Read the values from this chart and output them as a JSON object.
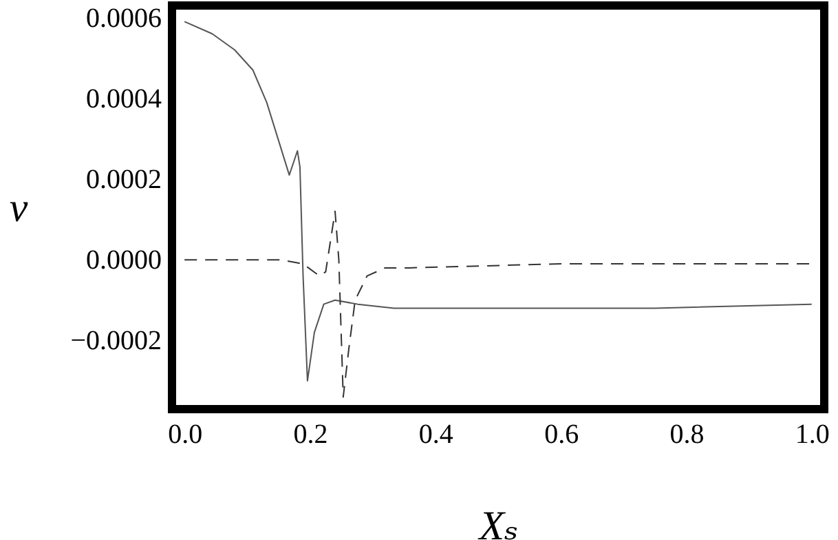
{
  "chart_data": {
    "type": "line",
    "xlabel": "Xₛ",
    "ylabel": "v",
    "xlim": [
      -0.02,
      1.02
    ],
    "ylim": [
      -0.00037,
      0.00063
    ],
    "xticks": [
      {
        "value": 0,
        "label": "0.0"
      },
      {
        "value": 0.2,
        "label": "0.2"
      },
      {
        "value": 0.4,
        "label": "0.4"
      },
      {
        "value": 0.6,
        "label": "0.6"
      },
      {
        "value": 0.8,
        "label": "0.8"
      },
      {
        "value": 1,
        "label": "1.0"
      }
    ],
    "yticks": [
      {
        "value": -0.0002,
        "label": "−0.0002"
      },
      {
        "value": 0,
        "label": "0.0000"
      },
      {
        "value": 0.0002,
        "label": "0.0002"
      },
      {
        "value": 0.0004,
        "label": "0.0004"
      },
      {
        "value": 0.0006,
        "label": "0.0006"
      }
    ],
    "grid": false,
    "series": [
      {
        "color": "#555555",
        "line_style": "solid",
        "x": [
          0,
          0.044,
          0.08,
          0.109,
          0.131,
          0.149,
          0.167,
          0.18,
          0.184,
          0.189,
          0.196,
          0.207,
          0.222,
          0.24,
          0.276,
          0.334,
          0.5,
          0.75,
          1
        ],
        "values": [
          0.00059,
          0.00056,
          0.00052,
          0.00047,
          0.00039,
          0.0003,
          0.00021,
          0.00027,
          0.00023,
          -4e-05,
          -0.0003,
          -0.00018,
          -0.00011,
          -0.0001,
          -0.00011,
          -0.00012,
          -0.00012,
          -0.00012,
          -0.00011
        ]
      },
      {
        "color": "#333333",
        "line_style": "dashed",
        "x": [
          0,
          0.153,
          0.189,
          0.215,
          0.225,
          0.234,
          0.24,
          0.246,
          0.253,
          0.262,
          0.272,
          0.291,
          0.32,
          0.358,
          0.6,
          1
        ],
        "values": [
          0,
          0,
          -1e-05,
          -4e-05,
          -3e-05,
          6e-05,
          0.00012,
          0,
          -0.00034,
          -0.00022,
          -0.0001,
          -4e-05,
          -2e-05,
          -2e-05,
          -1e-05,
          -1e-05
        ]
      }
    ]
  }
}
